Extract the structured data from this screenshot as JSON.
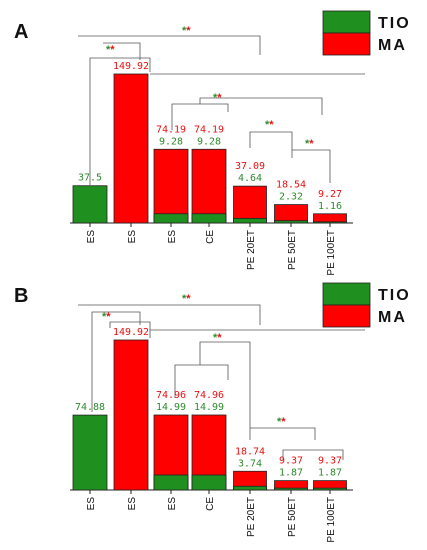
{
  "colors": {
    "tio": "#1f8f1f",
    "ma": "#ff0000",
    "tio_text": "#2e8b2e",
    "ma_text": "#e81010"
  },
  "chart_data": [
    {
      "type": "bar",
      "panel": "A",
      "legend": [
        "TIO",
        "MA"
      ],
      "legend_position": "top-right",
      "categories": [
        "ES",
        "ES",
        "ES",
        "CE",
        "PE 20ET",
        "PE 50ET",
        "PE 100ET"
      ],
      "series": [
        {
          "name": "TIO",
          "values": [
            37.5,
            0,
            9.28,
            9.28,
            4.64,
            2.32,
            1.16
          ]
        },
        {
          "name": "MA",
          "values": [
            0,
            149.92,
            74.19,
            74.19,
            37.09,
            18.54,
            9.27
          ]
        }
      ],
      "bar_labels": [
        {
          "ma": "",
          "tio": "37.5"
        },
        {
          "ma": "149.92",
          "tio": ""
        },
        {
          "ma": "74.19",
          "tio": "9.28"
        },
        {
          "ma": "74.19",
          "tio": "9.28"
        },
        {
          "ma": "37.09",
          "tio": "4.64"
        },
        {
          "ma": "18.54",
          "tio": "2.32"
        },
        {
          "ma": "9.27",
          "tio": "1.16"
        }
      ],
      "ylim": [
        0,
        160
      ],
      "significance_marker": "**"
    },
    {
      "type": "bar",
      "panel": "B",
      "legend": [
        "TIO",
        "MA"
      ],
      "legend_position": "top-right",
      "categories": [
        "ES",
        "ES",
        "ES",
        "CE",
        "PE 20ET",
        "PE 50ET",
        "PE 100ET"
      ],
      "series": [
        {
          "name": "TIO",
          "values": [
            74.88,
            0,
            14.99,
            14.99,
            3.74,
            1.87,
            1.87
          ]
        },
        {
          "name": "MA",
          "values": [
            0,
            149.92,
            74.96,
            74.96,
            18.74,
            9.37,
            9.37
          ]
        }
      ],
      "bar_labels": [
        {
          "ma": "",
          "tio": "74.88"
        },
        {
          "ma": "149.92",
          "tio": ""
        },
        {
          "ma": "74.96",
          "tio": "14.99"
        },
        {
          "ma": "74.96",
          "tio": "14.99"
        },
        {
          "ma": "18.74",
          "tio": "3.74"
        },
        {
          "ma": "9.37",
          "tio": "1.87"
        },
        {
          "ma": "9.37",
          "tio": "1.87"
        }
      ],
      "ylim": [
        0,
        160
      ],
      "significance_marker": "**"
    }
  ]
}
